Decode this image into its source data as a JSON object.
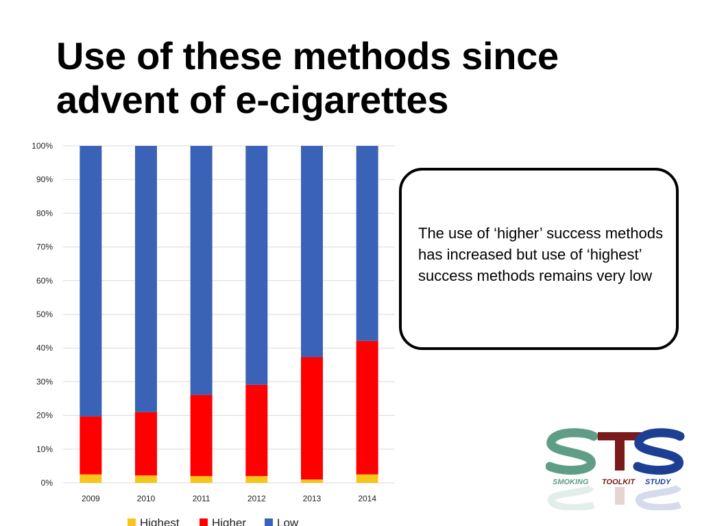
{
  "slide": {
    "title": "Use of these methods since advent of e-cigarettes",
    "callout_text": "The use of ‘higher’ success methods has increased but use of ‘highest’ success methods remains very low"
  },
  "logo": {
    "letters": [
      "S",
      "T",
      "S"
    ],
    "words": [
      "SMOKING",
      "TOOLKIT",
      "STUDY"
    ],
    "colors": {
      "s1": "#5e9e86",
      "t": "#7a1a1a",
      "s2": "#1c3f94"
    }
  },
  "chart_data": {
    "type": "bar",
    "stacked": true,
    "categories": [
      "2009",
      "2010",
      "2011",
      "2012",
      "2013",
      "2014"
    ],
    "series": [
      {
        "name": "Highest",
        "color": "#f5c518",
        "values": [
          2.5,
          2.2,
          2.0,
          2.0,
          1.0,
          2.5
        ]
      },
      {
        "name": "Higher",
        "color": "#ff0000",
        "values": [
          17.2,
          18.8,
          24.1,
          27.1,
          36.3,
          39.6
        ]
      },
      {
        "name": "Low",
        "color": "#3a63b7",
        "values": [
          80.3,
          79.0,
          73.9,
          70.9,
          62.7,
          57.9
        ]
      }
    ],
    "ylim": [
      0,
      100
    ],
    "yticks": [
      "0%",
      "10%",
      "20%",
      "30%",
      "40%",
      "50%",
      "60%",
      "70%",
      "80%",
      "90%",
      "100%"
    ],
    "grid": true,
    "legend": "bottom"
  }
}
